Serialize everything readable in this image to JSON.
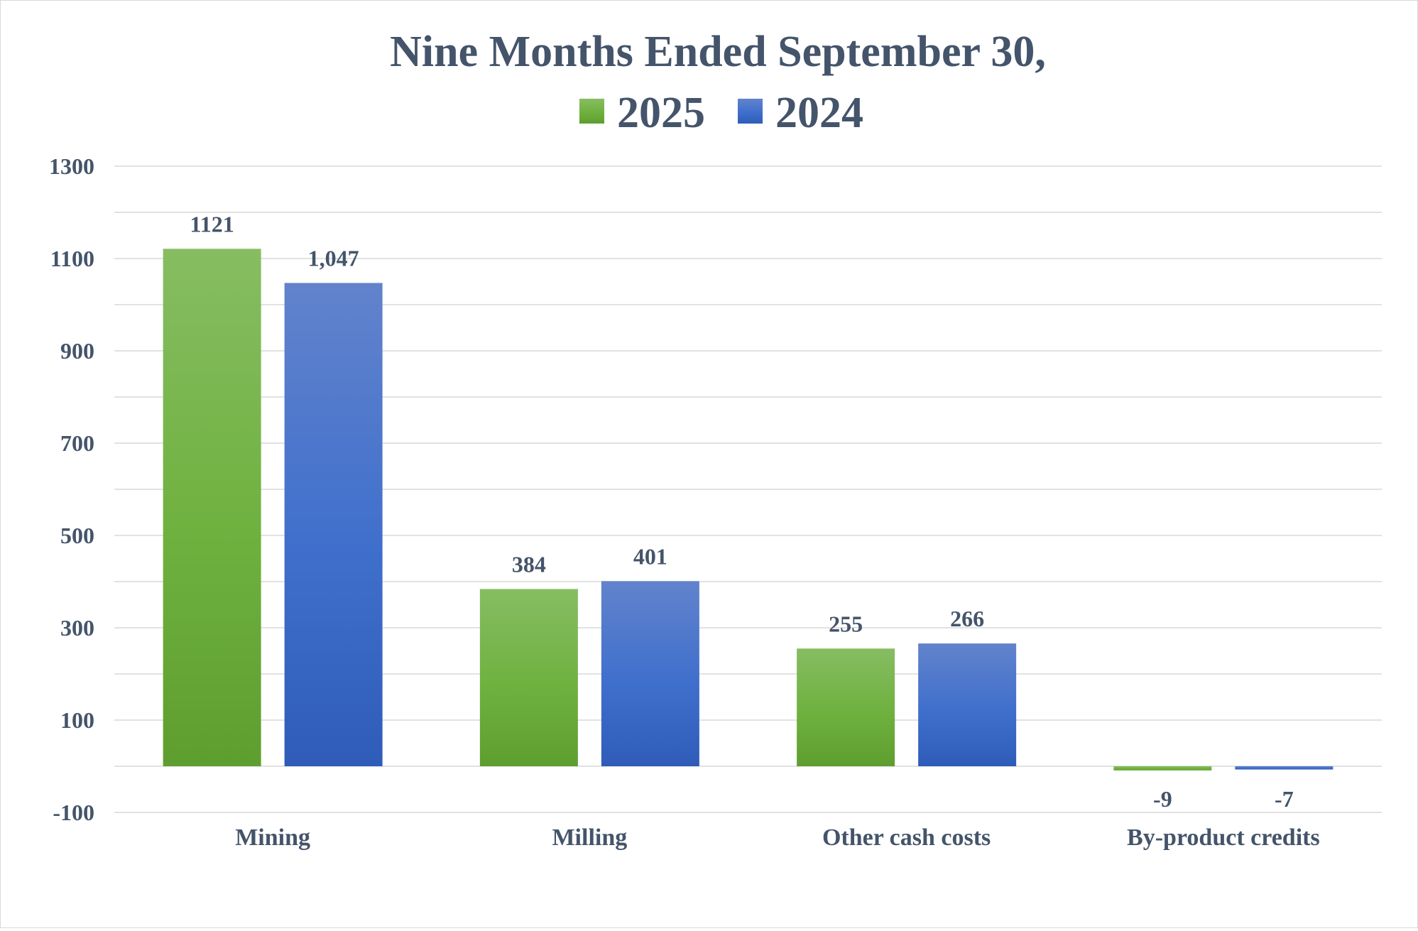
{
  "chart_data": {
    "type": "bar",
    "title": "Nine Months Ended September 30,",
    "categories": [
      "Mining",
      "Milling",
      "Other cash costs",
      "By-product credits"
    ],
    "series": [
      {
        "name": "2025",
        "values": [
          1121,
          384,
          255,
          -9
        ],
        "labels": [
          "1121",
          "384",
          "255",
          "-9"
        ],
        "color": "#70ad47"
      },
      {
        "name": "2024",
        "values": [
          1047,
          401,
          266,
          -7
        ],
        "labels": [
          "1,047",
          "401",
          "266",
          "-7"
        ],
        "color": "#4472c4"
      }
    ],
    "y_ticks": [
      "1300",
      "1100",
      "900",
      "700",
      "500",
      "300",
      "100",
      "-100"
    ],
    "ylim": [
      -100,
      1300
    ],
    "xlabel": "",
    "ylabel": "",
    "grid": true,
    "legend_position": "top-center"
  }
}
